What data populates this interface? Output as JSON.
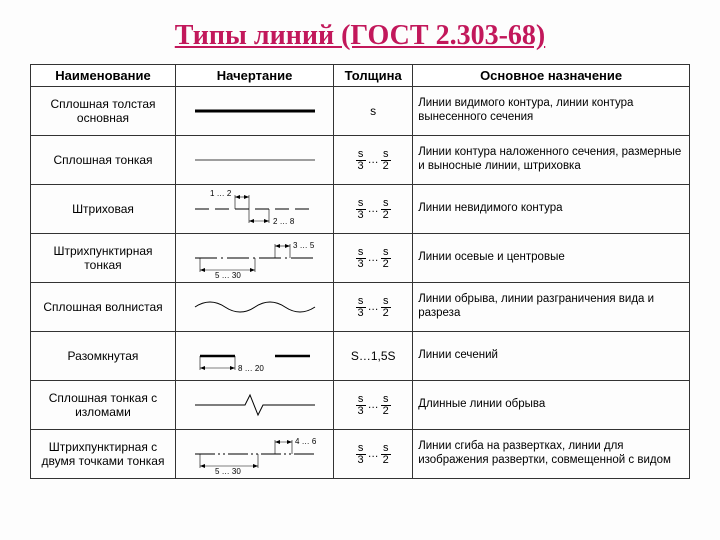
{
  "title": "Типы линий (ГОСТ 2.303-68)",
  "columns": [
    "Наименование",
    "Начертание",
    "Толщина",
    "Основное назначение"
  ],
  "thickness_frac": {
    "n1": "s",
    "d1": "3",
    "n2": "s",
    "d2": "2"
  },
  "rows": [
    {
      "name": "Сплошная толстая основная",
      "thickness_plain": "s",
      "desc": "Линии видимого контура, линии контура вынесенного сечения",
      "draw": "thick"
    },
    {
      "name": "Сплошная тонкая",
      "thickness_frac": true,
      "desc": "Линии контура наложенного сечения, размерные и выносные линии, штриховка",
      "draw": "thin"
    },
    {
      "name": "Штриховая",
      "thickness_frac": true,
      "desc": "Линии невидимого контура",
      "draw": "dashed",
      "dim_top": "1 … 2",
      "dim_bot": "2 … 8"
    },
    {
      "name": "Штрихпунктирная тонкая",
      "thickness_frac": true,
      "desc": "Линии осевые и центровые",
      "draw": "dashdot",
      "dim_top": "3 … 5",
      "dim_bot": "5 … 30"
    },
    {
      "name": "Сплошная волнистая",
      "thickness_frac": true,
      "desc": "Линии обрыва, линии разграничения вида и разреза",
      "draw": "wavy"
    },
    {
      "name": "Разомкнутая",
      "thickness_plain": "S…1,5S",
      "desc": "Линии сечений",
      "draw": "open",
      "dim_bot": "8 … 20"
    },
    {
      "name": "Сплошная тонкая с изломами",
      "thickness_frac": true,
      "desc": "Длинные линии обрыва",
      "draw": "zigzag"
    },
    {
      "name": "Штрихпунктирная с двумя точками тонкая",
      "thickness_frac": true,
      "desc": "Линии сгиба на развертках, линии для изображения развертки, совмещенной с видом",
      "draw": "dashdot2",
      "dim_top": "4 … 6",
      "dim_bot": "5 … 30"
    }
  ],
  "colors": {
    "title": "#c2185b",
    "line": "#000000"
  }
}
